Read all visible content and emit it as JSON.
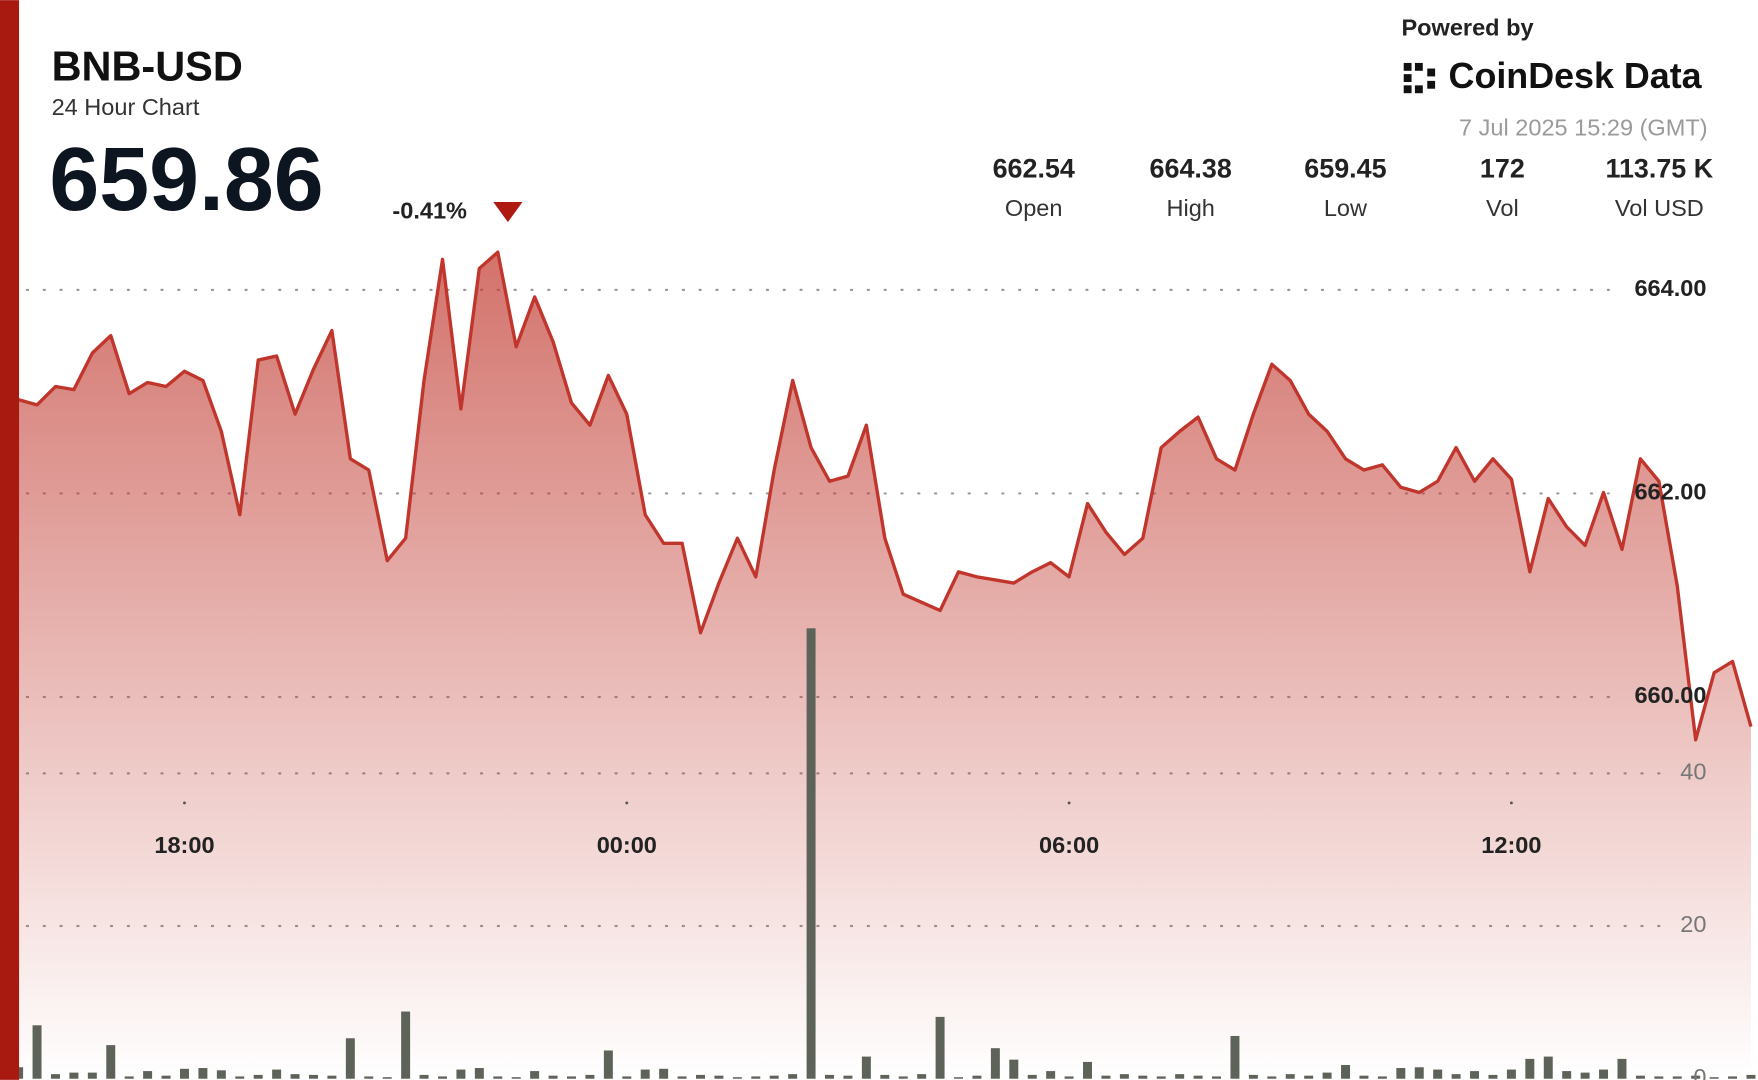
{
  "header": {
    "title": "BNB-USD",
    "subtitle": "24 Hour Chart",
    "price": "659.86",
    "change": "-0.41%",
    "powered_by": "Powered by",
    "brand": "CoinDesk Data",
    "timestamp": "7 Jul 2025 15:29 (GMT)",
    "stats": [
      {
        "value": "662.54",
        "label": "Open"
      },
      {
        "value": "664.38",
        "label": "High"
      },
      {
        "value": "659.45",
        "label": "Low"
      },
      {
        "value": "172",
        "label": "Vol"
      },
      {
        "value": "113.75 K",
        "label": "Vol USD"
      }
    ]
  },
  "chart_data": {
    "type": "line",
    "x": [
      -8.25,
      -8,
      -7.75,
      -7.5,
      -7.25,
      -7,
      -6.75,
      -6.5,
      -6.25,
      -6,
      -5.75,
      -5.5,
      -5.25,
      -5,
      -4.75,
      -4.5,
      -4.25,
      -4,
      -3.75,
      -3.5,
      -3.25,
      -3,
      -2.75,
      -2.5,
      -2.25,
      -2,
      -1.75,
      -1.5,
      -1.25,
      -1,
      -0.75,
      -0.5,
      -0.25,
      0,
      0.25,
      0.5,
      0.75,
      1,
      1.25,
      1.5,
      1.75,
      2,
      2.25,
      2.5,
      2.75,
      3,
      3.25,
      3.5,
      3.75,
      4,
      4.25,
      4.5,
      4.75,
      5,
      5.25,
      5.5,
      5.75,
      6,
      6.25,
      6.5,
      6.75,
      7,
      7.25,
      7.5,
      7.75,
      8,
      8.25,
      8.5,
      8.75,
      9,
      9.25,
      9.5,
      9.75,
      10,
      10.25,
      10.5,
      10.75,
      11,
      11.25,
      11.5,
      11.75,
      12,
      12.25,
      12.5,
      12.75,
      13,
      13.25,
      13.5,
      13.75,
      14,
      14.25,
      14.5,
      14.75,
      15,
      15.25
    ],
    "series": [
      {
        "color": "#c0362c",
        "values": [
          662.92,
          662.87,
          663.05,
          663.02,
          663.38,
          663.55,
          662.98,
          663.09,
          663.05,
          663.2,
          663.11,
          662.61,
          661.79,
          663.31,
          663.35,
          662.78,
          663.22,
          663.6,
          662.34,
          662.23,
          661.34,
          661.56,
          663.11,
          664.3,
          662.83,
          664.21,
          664.37,
          663.44,
          663.93,
          663.49,
          662.89,
          662.67,
          663.16,
          662.78,
          661.79,
          661.51,
          661.51,
          660.63,
          661.12,
          661.56,
          661.18,
          662.23,
          663.11,
          662.45,
          662.12,
          662.17,
          662.67,
          661.56,
          661.01,
          660.93,
          660.85,
          661.23,
          661.18,
          661.15,
          661.12,
          661.23,
          661.32,
          661.18,
          661.9,
          661.62,
          661.4,
          661.56,
          662.45,
          662.61,
          662.75,
          662.34,
          662.23,
          662.78,
          663.27,
          663.11,
          662.78,
          662.61,
          662.34,
          662.23,
          662.28,
          662.06,
          662.01,
          662.12,
          662.45,
          662.12,
          662.34,
          662.14,
          661.23,
          661.95,
          661.67,
          661.49,
          662.01,
          661.45,
          662.34,
          662.12,
          661.09,
          659.58,
          660.24,
          660.35,
          659.71
        ]
      },
      {
        "type": "bar",
        "axis": "y2",
        "color": "#5d6359",
        "values": [
          1.5,
          7,
          0.6,
          0.8,
          0.8,
          4.4,
          0.3,
          1.0,
          0.4,
          1.3,
          1.4,
          1.1,
          0.3,
          0.5,
          1.2,
          0.6,
          0.5,
          0.4,
          5.3,
          0.3,
          0.2,
          8.8,
          0.5,
          0.3,
          1.2,
          1.4,
          0.3,
          0.2,
          1.0,
          0.4,
          0.3,
          0.5,
          3.7,
          0.3,
          1.2,
          1.3,
          0.3,
          0.5,
          0.4,
          0.2,
          0.3,
          0.4,
          0.6,
          59,
          0.5,
          0.4,
          2.9,
          0.5,
          0.3,
          0.6,
          8.1,
          0.2,
          0.4,
          4,
          2.5,
          0.5,
          1.0,
          0.3,
          2.2,
          0.4,
          0.6,
          0.4,
          0.3,
          0.6,
          0.4,
          0.3,
          5.6,
          0.5,
          0.3,
          0.6,
          0.4,
          0.8,
          1.8,
          0.4,
          0.3,
          1.4,
          1.5,
          1.2,
          0.6,
          1.0,
          0.5,
          1.2,
          2.6,
          2.9,
          1.0,
          0.8,
          1.2,
          2.6,
          0.4,
          0.3,
          0.3,
          0.4,
          0.2,
          0.3,
          0.5
        ]
      }
    ],
    "xlim": [
      -8.25,
      15.33
    ],
    "xticks": [
      {
        "value": -6,
        "label": "18:00"
      },
      {
        "value": 0,
        "label": "00:00"
      },
      {
        "value": 6,
        "label": "06:00"
      },
      {
        "value": 12,
        "label": "12:00"
      }
    ],
    "ylim": [
      656.25,
      664.5
    ],
    "yticks": [
      {
        "value": 660,
        "label": "660.00"
      },
      {
        "value": 662,
        "label": "662.00"
      },
      {
        "value": 664,
        "label": "664.00"
      }
    ],
    "y2lim": [
      0,
      110
    ],
    "y2ticks": [
      0,
      20,
      40
    ],
    "grid": true
  }
}
